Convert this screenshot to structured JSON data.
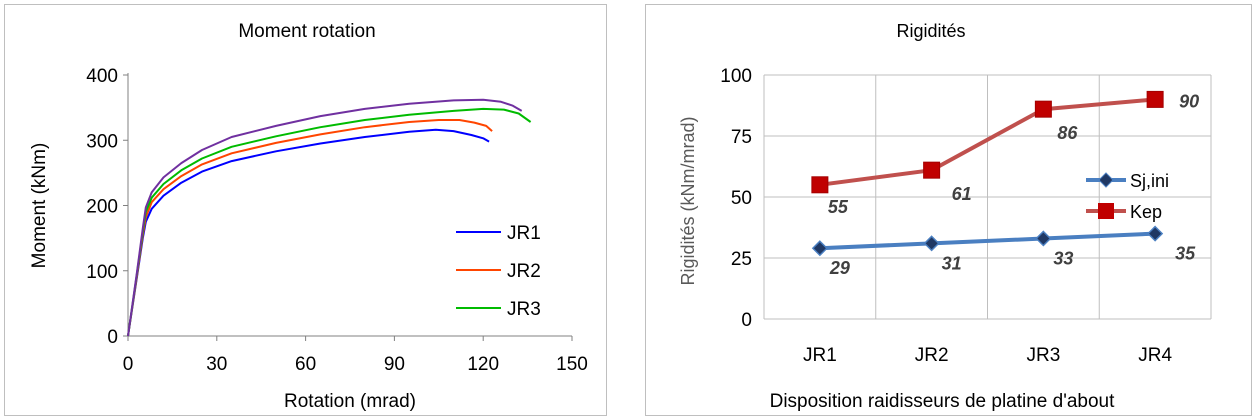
{
  "chart_data": [
    {
      "type": "line",
      "title": "Moment rotation",
      "xlabel": "Rotation (mrad)",
      "ylabel": "Moment (kNm)",
      "xlim": [
        0,
        150
      ],
      "ylim": [
        0,
        400
      ],
      "x_ticks": [
        "0",
        "30",
        "60",
        "90",
        "120",
        "150"
      ],
      "y_ticks": [
        "0",
        "100",
        "200",
        "300",
        "400"
      ],
      "grid": false,
      "legend_position": "bottom-right",
      "series": [
        {
          "name": "JR1",
          "color": "#0000ff",
          "points": [
            [
              0,
              0
            ],
            [
              3,
              90
            ],
            [
              5,
              150
            ],
            [
              6,
              175
            ],
            [
              8,
              195
            ],
            [
              12,
              215
            ],
            [
              18,
              235
            ],
            [
              25,
              252
            ],
            [
              35,
              268
            ],
            [
              50,
              283
            ],
            [
              65,
              295
            ],
            [
              80,
              305
            ],
            [
              95,
              313
            ],
            [
              104,
              316
            ],
            [
              110,
              314
            ],
            [
              116,
              308
            ],
            [
              120,
              303
            ],
            [
              122,
              298
            ]
          ]
        },
        {
          "name": "JR2",
          "color": "#ff4500",
          "points": [
            [
              0,
              0
            ],
            [
              3,
              92
            ],
            [
              5,
              155
            ],
            [
              6,
              182
            ],
            [
              8,
              205
            ],
            [
              12,
              225
            ],
            [
              18,
              245
            ],
            [
              25,
              263
            ],
            [
              35,
              280
            ],
            [
              50,
              296
            ],
            [
              65,
              309
            ],
            [
              80,
              320
            ],
            [
              95,
              328
            ],
            [
              105,
              331
            ],
            [
              112,
              331
            ],
            [
              117,
              327
            ],
            [
              121,
              322
            ],
            [
              123,
              314
            ]
          ]
        },
        {
          "name": "JR3",
          "color": "#00bb00",
          "points": [
            [
              0,
              0
            ],
            [
              3,
              95
            ],
            [
              5,
              160
            ],
            [
              6,
              190
            ],
            [
              8,
              212
            ],
            [
              12,
              233
            ],
            [
              18,
              254
            ],
            [
              25,
              272
            ],
            [
              35,
              290
            ],
            [
              50,
              306
            ],
            [
              65,
              320
            ],
            [
              80,
              331
            ],
            [
              95,
              339
            ],
            [
              110,
              345
            ],
            [
              120,
              348
            ],
            [
              127,
              347
            ],
            [
              132,
              341
            ],
            [
              136,
              328
            ]
          ]
        },
        {
          "name": "",
          "color": "#7030a0",
          "points": [
            [
              0,
              0
            ],
            [
              3,
              97
            ],
            [
              5,
              165
            ],
            [
              6,
              197
            ],
            [
              8,
              220
            ],
            [
              12,
              243
            ],
            [
              18,
              265
            ],
            [
              25,
              285
            ],
            [
              35,
              305
            ],
            [
              50,
              322
            ],
            [
              65,
              337
            ],
            [
              80,
              348
            ],
            [
              95,
              356
            ],
            [
              110,
              361
            ],
            [
              120,
              362
            ],
            [
              126,
              359
            ],
            [
              130,
              353
            ],
            [
              133,
              345
            ]
          ]
        }
      ]
    },
    {
      "type": "line",
      "title": "Rigidités",
      "xlabel": "Disposition raidisseurs de platine d'about",
      "ylabel": "Rigidités  (kNm/mrad)",
      "categories": [
        "JR1",
        "JR2",
        "JR3",
        "JR4"
      ],
      "ylim": [
        0,
        100
      ],
      "y_ticks": [
        "0",
        "25",
        "50",
        "75",
        "100"
      ],
      "grid": true,
      "legend_position": "right",
      "series": [
        {
          "name": "Sj,ini",
          "color": "#4a7fc1",
          "marker": "diamond",
          "values": [
            29,
            31,
            33,
            35
          ],
          "labels": [
            "29",
            "31",
            "33",
            "35"
          ]
        },
        {
          "name": "Kep",
          "color": "#c0504d",
          "marker": "square",
          "values": [
            55,
            61,
            86,
            90
          ],
          "labels": [
            "55",
            "61",
            "86",
            "90"
          ]
        }
      ]
    }
  ]
}
